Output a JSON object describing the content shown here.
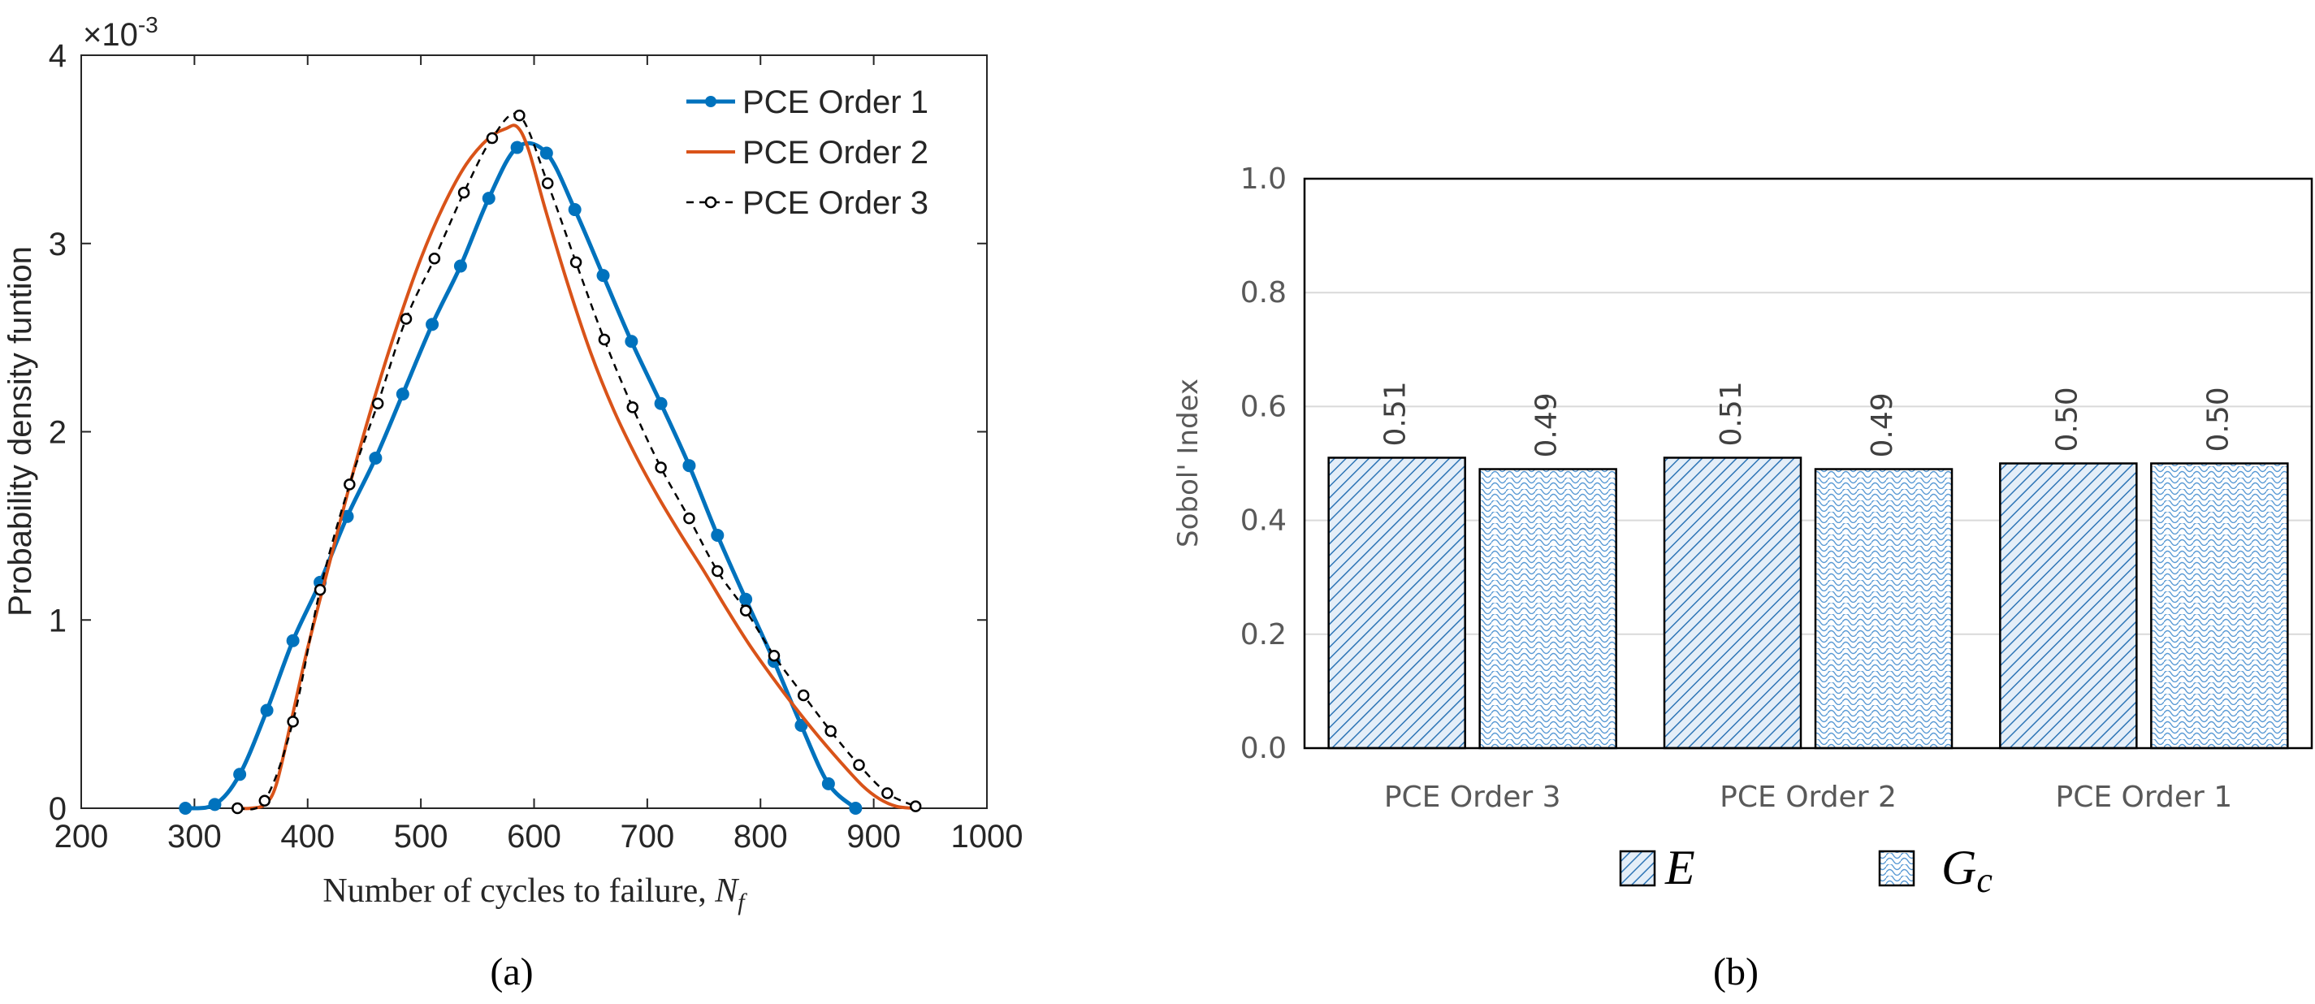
{
  "chart_data": [
    {
      "type": "line",
      "panel_label": "(a)",
      "title": "",
      "xlabel": "Number of cycles to failure, ",
      "xlabel_symbol": "N",
      "xlabel_subscript": "f",
      "ylabel": "Probability density funtion",
      "y_multiplier": "×10",
      "y_multiplier_exp": "-3",
      "xlim": [
        200,
        1000
      ],
      "ylim": [
        0,
        4
      ],
      "xticks": [
        "200",
        "300",
        "400",
        "500",
        "600",
        "700",
        "800",
        "900",
        "1000"
      ],
      "yticks": [
        "0",
        "1",
        "2",
        "3",
        "4"
      ],
      "legend_position": "top-right",
      "series": [
        {
          "name": "PCE Order 1",
          "color": "#0072BD",
          "style": "solid-with-filled-circles",
          "x": [
            292,
            318,
            340,
            364,
            387,
            411,
            435,
            460,
            484,
            510,
            535,
            560,
            585,
            611,
            636,
            661,
            686,
            712,
            737,
            762,
            787,
            812,
            836,
            860,
            884
          ],
          "y": [
            0.0,
            0.02,
            0.18,
            0.52,
            0.89,
            1.2,
            1.55,
            1.86,
            2.2,
            2.57,
            2.88,
            3.24,
            3.51,
            3.48,
            3.18,
            2.83,
            2.48,
            2.15,
            1.82,
            1.45,
            1.11,
            0.78,
            0.44,
            0.13,
            0.0
          ]
        },
        {
          "name": "PCE Order 2",
          "color": "#D95319",
          "style": "solid",
          "x": [
            338,
            350,
            362,
            372,
            385,
            400,
            420,
            440,
            460,
            480,
            500,
            520,
            540,
            560,
            575,
            585,
            595,
            610,
            630,
            650,
            670,
            690,
            710,
            730,
            750,
            770,
            790,
            810,
            830,
            850,
            870,
            890,
            905,
            920,
            935
          ],
          "y": [
            0.0,
            0.0,
            0.02,
            0.12,
            0.45,
            0.85,
            1.32,
            1.78,
            2.2,
            2.58,
            2.92,
            3.2,
            3.42,
            3.56,
            3.61,
            3.62,
            3.5,
            3.18,
            2.78,
            2.42,
            2.12,
            1.87,
            1.65,
            1.45,
            1.26,
            1.06,
            0.87,
            0.7,
            0.54,
            0.39,
            0.25,
            0.12,
            0.05,
            0.01,
            0.0
          ]
        },
        {
          "name": "PCE Order 3",
          "color": "#000000",
          "style": "dashed-with-open-circles",
          "x": [
            338,
            362,
            387,
            411,
            437,
            462,
            487,
            512,
            538,
            563,
            587,
            612,
            637,
            662,
            687,
            712,
            737,
            762,
            787,
            812,
            838,
            862,
            887,
            912,
            937
          ],
          "y": [
            0.0,
            0.04,
            0.46,
            1.16,
            1.72,
            2.15,
            2.6,
            2.92,
            3.27,
            3.56,
            3.68,
            3.32,
            2.9,
            2.49,
            2.13,
            1.81,
            1.54,
            1.26,
            1.05,
            0.81,
            0.6,
            0.41,
            0.23,
            0.08,
            0.01
          ]
        }
      ]
    },
    {
      "type": "bar",
      "panel_label": "(b)",
      "title": "",
      "xlabel": "",
      "ylabel": "Sobol' Index",
      "ylim": [
        0,
        1
      ],
      "yticks": [
        "0.0",
        "0.2",
        "0.4",
        "0.6",
        "0.8",
        "1.0"
      ],
      "grid": true,
      "categories": [
        "PCE Order 3",
        "PCE Order 2",
        "PCE Order 1"
      ],
      "legend_position": "bottom",
      "series": [
        {
          "name": "E",
          "subscript": "",
          "pattern": "diagonal-hatch",
          "values": [
            0.51,
            0.51,
            0.5
          ],
          "labels": [
            "0.51",
            "0.51",
            "0.50"
          ]
        },
        {
          "name": "G",
          "subscript": "c",
          "pattern": "wave-mesh",
          "values": [
            0.49,
            0.49,
            0.5
          ],
          "labels": [
            "0.49",
            "0.49",
            "0.50"
          ]
        }
      ],
      "colors": {
        "bar_fill": "#e4eef8",
        "bar_pattern": "#2e75b6",
        "axis_text": "#595959",
        "grid": "#d9d9d9"
      }
    }
  ]
}
